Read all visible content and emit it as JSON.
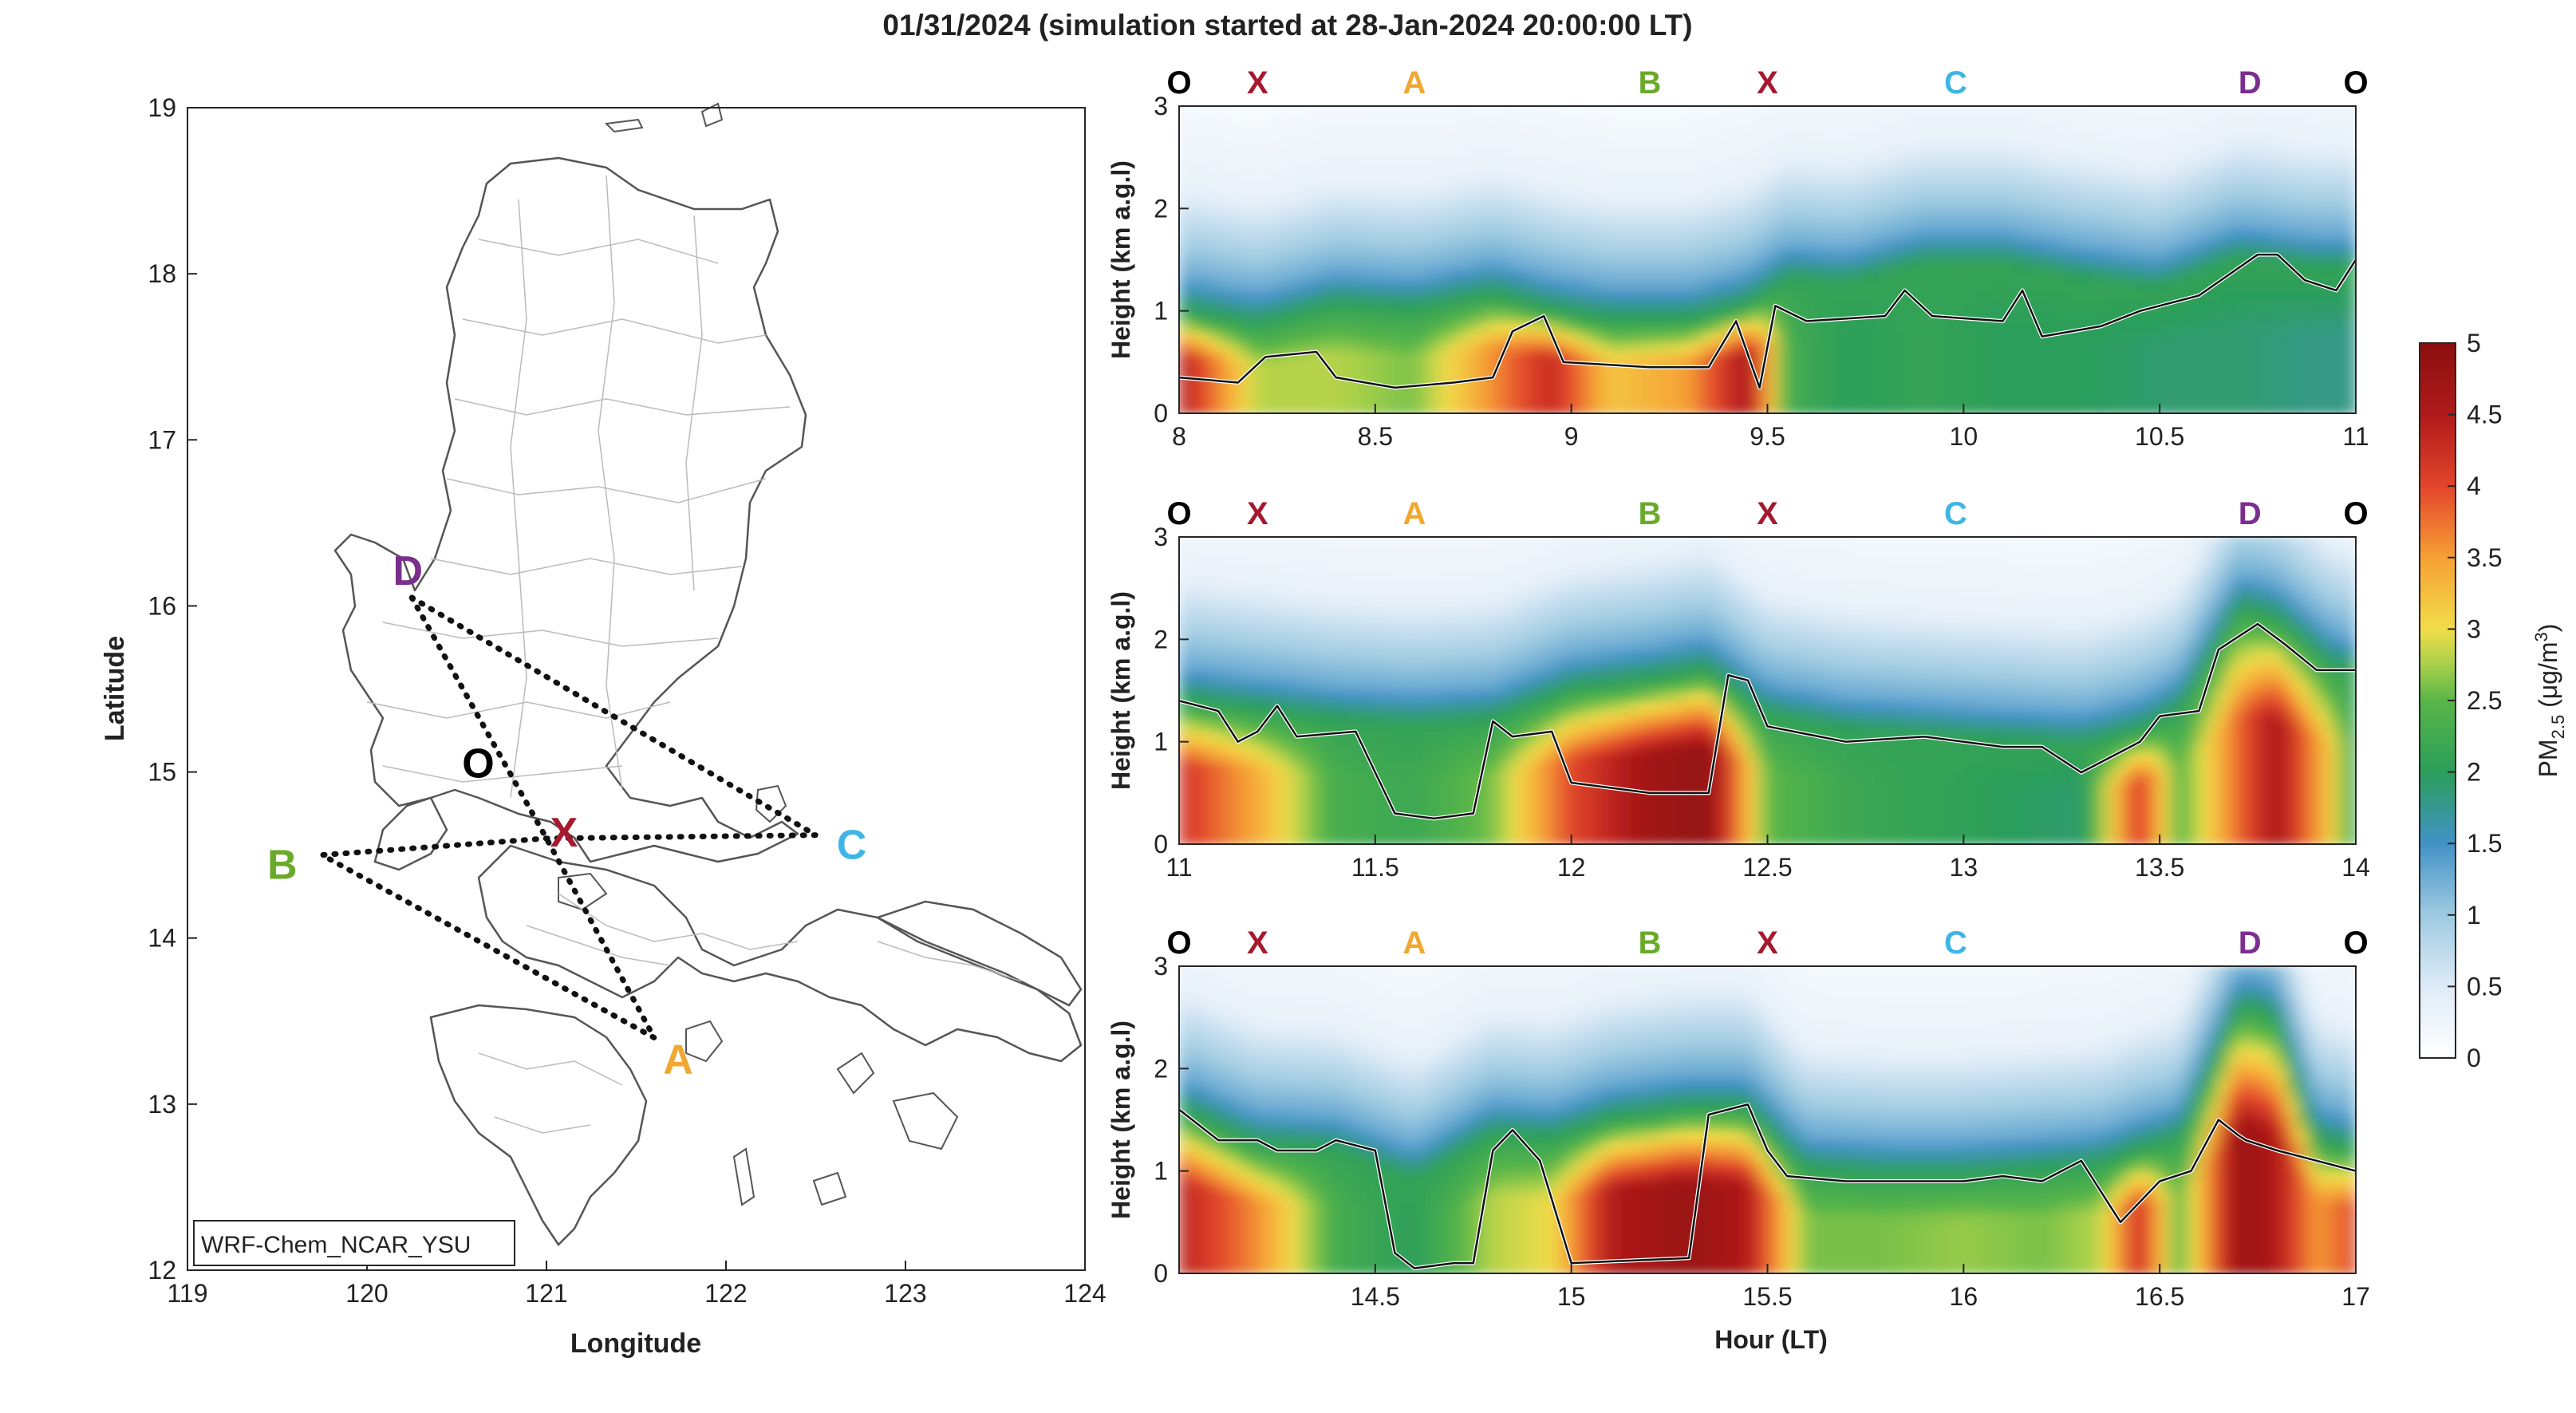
{
  "title": "01/31/2024 (simulation started at 28-Jan-2024 20:00:00 LT)",
  "chart_data": [
    {
      "type": "map",
      "xlabel": "Longitude",
      "ylabel": "Latitude",
      "xlim": [
        119,
        124
      ],
      "ylim": [
        12,
        19
      ],
      "xticks": [
        "119",
        "120",
        "121",
        "122",
        "123",
        "124"
      ],
      "yticks": [
        "12",
        "13",
        "14",
        "15",
        "16",
        "17",
        "18",
        "19"
      ],
      "model_label": "WRF-Chem_NCAR_YSU",
      "sites": [
        {
          "label": "D",
          "lon": 120.25,
          "lat": 16.05,
          "color": "#7b2e8e"
        },
        {
          "label": "O",
          "lon": 120.62,
          "lat": 15.15,
          "color": "#000000"
        },
        {
          "label": "X",
          "lon": 121.0,
          "lat": 14.6,
          "color": "#a6192e"
        },
        {
          "label": "B",
          "lon": 119.75,
          "lat": 14.5,
          "color": "#6aaa2a"
        },
        {
          "label": "C",
          "lon": 122.5,
          "lat": 14.62,
          "color": "#3fb5e6"
        },
        {
          "label": "A",
          "lon": 121.6,
          "lat": 13.4,
          "color": "#f0a830"
        }
      ],
      "flight_path": [
        "D",
        "X",
        "A",
        "B",
        "X",
        "C",
        "D"
      ]
    },
    {
      "type": "heatmap",
      "panel": 1,
      "xlim": [
        8,
        11
      ],
      "ylim": [
        0,
        3
      ],
      "xticks": [
        "8",
        "8.5",
        "9",
        "9.5",
        "10",
        "10.5",
        "11"
      ],
      "yticks": [
        "0",
        "1",
        "2",
        "3"
      ],
      "ylabel": "Height (km a.g.l)",
      "top_labels": [
        {
          "text": "O",
          "x": 8.0,
          "color": "#000000"
        },
        {
          "text": "X",
          "x": 8.2,
          "color": "#a6192e"
        },
        {
          "text": "A",
          "x": 8.6,
          "color": "#f0a830"
        },
        {
          "text": "B",
          "x": 9.2,
          "color": "#6aaa2a"
        },
        {
          "text": "X",
          "x": 9.5,
          "color": "#a6192e"
        },
        {
          "text": "C",
          "x": 9.98,
          "color": "#3fb5e6"
        },
        {
          "text": "D",
          "x": 10.73,
          "color": "#7b2e8e"
        },
        {
          "text": "O",
          "x": 11.0,
          "color": "#000000"
        }
      ],
      "pbl_height_km": [
        [
          8.0,
          0.35
        ],
        [
          8.15,
          0.3
        ],
        [
          8.22,
          0.55
        ],
        [
          8.35,
          0.6
        ],
        [
          8.4,
          0.35
        ],
        [
          8.55,
          0.25
        ],
        [
          8.7,
          0.3
        ],
        [
          8.8,
          0.35
        ],
        [
          8.85,
          0.8
        ],
        [
          8.93,
          0.95
        ],
        [
          8.98,
          0.5
        ],
        [
          9.2,
          0.45
        ],
        [
          9.35,
          0.45
        ],
        [
          9.42,
          0.9
        ],
        [
          9.48,
          0.25
        ],
        [
          9.52,
          1.05
        ],
        [
          9.6,
          0.9
        ],
        [
          9.8,
          0.95
        ],
        [
          9.85,
          1.2
        ],
        [
          9.92,
          0.95
        ],
        [
          10.1,
          0.9
        ],
        [
          10.15,
          1.2
        ],
        [
          10.2,
          0.75
        ],
        [
          10.35,
          0.85
        ],
        [
          10.45,
          1.0
        ],
        [
          10.6,
          1.15
        ],
        [
          10.75,
          1.55
        ],
        [
          10.8,
          1.55
        ],
        [
          10.87,
          1.3
        ],
        [
          10.95,
          1.2
        ],
        [
          11.0,
          1.5
        ]
      ],
      "pm25_columns": [
        [
          8.0,
          4.5,
          1.0
        ],
        [
          8.2,
          2.8,
          0.85
        ],
        [
          8.4,
          2.8,
          1.05
        ],
        [
          8.6,
          2.6,
          1.0
        ],
        [
          8.8,
          3.6,
          1.15
        ],
        [
          8.95,
          4.3,
          1.0
        ],
        [
          9.1,
          3.2,
          0.9
        ],
        [
          9.3,
          3.5,
          0.9
        ],
        [
          9.45,
          4.6,
          1.05
        ],
        [
          9.55,
          2.3,
          1.3
        ],
        [
          9.7,
          2.0,
          1.25
        ],
        [
          9.9,
          2.1,
          1.45
        ],
        [
          10.1,
          2.0,
          1.45
        ],
        [
          10.3,
          2.0,
          1.3
        ],
        [
          10.5,
          1.9,
          1.2
        ],
        [
          10.7,
          1.9,
          1.5
        ],
        [
          10.9,
          1.8,
          1.4
        ],
        [
          11.0,
          1.8,
          1.4
        ]
      ]
    },
    {
      "type": "heatmap",
      "panel": 2,
      "xlim": [
        11,
        14
      ],
      "ylim": [
        0,
        3
      ],
      "xticks": [
        "11",
        "11.5",
        "12",
        "12.5",
        "13",
        "13.5",
        "14"
      ],
      "yticks": [
        "0",
        "1",
        "2",
        "3"
      ],
      "ylabel": "Height (km a.g.l)",
      "top_labels": [
        {
          "text": "O",
          "x": 11.0,
          "color": "#000000"
        },
        {
          "text": "X",
          "x": 11.2,
          "color": "#a6192e"
        },
        {
          "text": "A",
          "x": 11.6,
          "color": "#f0a830"
        },
        {
          "text": "B",
          "x": 12.2,
          "color": "#6aaa2a"
        },
        {
          "text": "X",
          "x": 12.5,
          "color": "#a6192e"
        },
        {
          "text": "C",
          "x": 12.98,
          "color": "#3fb5e6"
        },
        {
          "text": "D",
          "x": 13.73,
          "color": "#7b2e8e"
        },
        {
          "text": "O",
          "x": 14.0,
          "color": "#000000"
        }
      ],
      "pbl_height_km": [
        [
          11.0,
          1.4
        ],
        [
          11.1,
          1.3
        ],
        [
          11.15,
          1.0
        ],
        [
          11.2,
          1.1
        ],
        [
          11.25,
          1.35
        ],
        [
          11.3,
          1.05
        ],
        [
          11.45,
          1.1
        ],
        [
          11.55,
          0.3
        ],
        [
          11.65,
          0.25
        ],
        [
          11.75,
          0.3
        ],
        [
          11.8,
          1.2
        ],
        [
          11.85,
          1.05
        ],
        [
          11.95,
          1.1
        ],
        [
          12.0,
          0.6
        ],
        [
          12.2,
          0.5
        ],
        [
          12.35,
          0.5
        ],
        [
          12.4,
          1.65
        ],
        [
          12.45,
          1.6
        ],
        [
          12.5,
          1.15
        ],
        [
          12.7,
          1.0
        ],
        [
          12.9,
          1.05
        ],
        [
          13.1,
          0.95
        ],
        [
          13.2,
          0.95
        ],
        [
          13.3,
          0.7
        ],
        [
          13.45,
          1.0
        ],
        [
          13.5,
          1.25
        ],
        [
          13.6,
          1.3
        ],
        [
          13.65,
          1.9
        ],
        [
          13.75,
          2.15
        ],
        [
          13.82,
          1.95
        ],
        [
          13.9,
          1.7
        ],
        [
          14.0,
          1.7
        ]
      ],
      "pm25_columns": [
        [
          11.0,
          4.2,
          1.4
        ],
        [
          11.2,
          3.4,
          1.3
        ],
        [
          11.4,
          2.3,
          1.2
        ],
        [
          11.6,
          2.2,
          1.15
        ],
        [
          11.8,
          2.6,
          1.2
        ],
        [
          12.0,
          4.0,
          1.5
        ],
        [
          12.2,
          4.7,
          1.6
        ],
        [
          12.35,
          4.9,
          1.7
        ],
        [
          12.5,
          2.5,
          1.25
        ],
        [
          12.7,
          2.2,
          1.1
        ],
        [
          12.9,
          2.1,
          1.05
        ],
        [
          13.1,
          2.0,
          1.0
        ],
        [
          13.3,
          1.9,
          0.95
        ],
        [
          13.45,
          4.2,
          1.1
        ],
        [
          13.55,
          2.4,
          1.3
        ],
        [
          13.7,
          3.8,
          2.3
        ],
        [
          13.8,
          4.6,
          2.2
        ],
        [
          13.95,
          3.0,
          1.7
        ],
        [
          14.0,
          2.0,
          1.7
        ]
      ]
    },
    {
      "type": "heatmap",
      "panel": 3,
      "xlim": [
        14,
        17
      ],
      "ylim": [
        0,
        3
      ],
      "xticks": [
        "14.5",
        "15",
        "15.5",
        "16",
        "16.5",
        "17"
      ],
      "yticks": [
        "0",
        "1",
        "2",
        "3"
      ],
      "xlabel": "Hour (LT)",
      "ylabel": "Height (km a.g.l)",
      "top_labels": [
        {
          "text": "O",
          "x": 14.0,
          "color": "#000000"
        },
        {
          "text": "X",
          "x": 14.2,
          "color": "#a6192e"
        },
        {
          "text": "A",
          "x": 14.6,
          "color": "#f0a830"
        },
        {
          "text": "B",
          "x": 15.2,
          "color": "#6aaa2a"
        },
        {
          "text": "X",
          "x": 15.5,
          "color": "#a6192e"
        },
        {
          "text": "C",
          "x": 15.98,
          "color": "#3fb5e6"
        },
        {
          "text": "D",
          "x": 16.73,
          "color": "#7b2e8e"
        },
        {
          "text": "O",
          "x": 17.0,
          "color": "#000000"
        }
      ],
      "pbl_height_km": [
        [
          14.0,
          1.6
        ],
        [
          14.1,
          1.3
        ],
        [
          14.2,
          1.3
        ],
        [
          14.25,
          1.2
        ],
        [
          14.35,
          1.2
        ],
        [
          14.4,
          1.3
        ],
        [
          14.5,
          1.2
        ],
        [
          14.55,
          0.2
        ],
        [
          14.6,
          0.05
        ],
        [
          14.7,
          0.1
        ],
        [
          14.75,
          0.1
        ],
        [
          14.8,
          1.2
        ],
        [
          14.85,
          1.4
        ],
        [
          14.92,
          1.1
        ],
        [
          15.0,
          0.1
        ],
        [
          15.3,
          0.15
        ],
        [
          15.35,
          1.55
        ],
        [
          15.45,
          1.65
        ],
        [
          15.5,
          1.2
        ],
        [
          15.55,
          0.95
        ],
        [
          15.7,
          0.9
        ],
        [
          15.9,
          0.9
        ],
        [
          16.0,
          0.9
        ],
        [
          16.1,
          0.95
        ],
        [
          16.2,
          0.9
        ],
        [
          16.3,
          1.1
        ],
        [
          16.4,
          0.5
        ],
        [
          16.5,
          0.9
        ],
        [
          16.58,
          1.0
        ],
        [
          16.65,
          1.5
        ],
        [
          16.7,
          1.35
        ],
        [
          16.72,
          1.3
        ],
        [
          16.8,
          1.2
        ],
        [
          16.9,
          1.1
        ],
        [
          17.0,
          1.0
        ]
      ],
      "pm25_columns": [
        [
          14.0,
          4.4,
          1.6
        ],
        [
          14.2,
          3.6,
          1.25
        ],
        [
          14.4,
          2.3,
          1.2
        ],
        [
          14.6,
          2.0,
          0.9
        ],
        [
          14.8,
          2.8,
          1.35
        ],
        [
          14.95,
          3.0,
          1.3
        ],
        [
          15.1,
          4.5,
          1.5
        ],
        [
          15.3,
          4.8,
          1.6
        ],
        [
          15.45,
          4.5,
          1.6
        ],
        [
          15.6,
          2.6,
          1.0
        ],
        [
          15.8,
          2.6,
          0.95
        ],
        [
          16.0,
          2.7,
          0.95
        ],
        [
          16.2,
          2.6,
          1.0
        ],
        [
          16.35,
          2.8,
          1.05
        ],
        [
          16.45,
          4.3,
          1.2
        ],
        [
          16.55,
          2.4,
          1.3
        ],
        [
          16.7,
          4.8,
          2.6
        ],
        [
          16.8,
          4.5,
          2.5
        ],
        [
          16.9,
          3.5,
          1.3
        ],
        [
          17.0,
          4.0,
          1.2
        ]
      ]
    }
  ],
  "colorbar": {
    "label_main": "PM",
    "label_sub": "2.5",
    "label_unit": " (μg/m",
    "label_exp": "3",
    "label_close": ")",
    "range": [
      0,
      5
    ],
    "ticks": [
      "0",
      "0.5",
      "1",
      "1.5",
      "2",
      "2.5",
      "3",
      "3.5",
      "4",
      "4.5",
      "5"
    ],
    "colors": [
      "#f7fbff",
      "#deebf7",
      "#9ecae1",
      "#4292c6",
      "#2b9e5a",
      "#59b648",
      "#a8d04a",
      "#f2dd4a",
      "#f6a035",
      "#e2452b",
      "#b01a1a",
      "#8b0f0f"
    ]
  }
}
